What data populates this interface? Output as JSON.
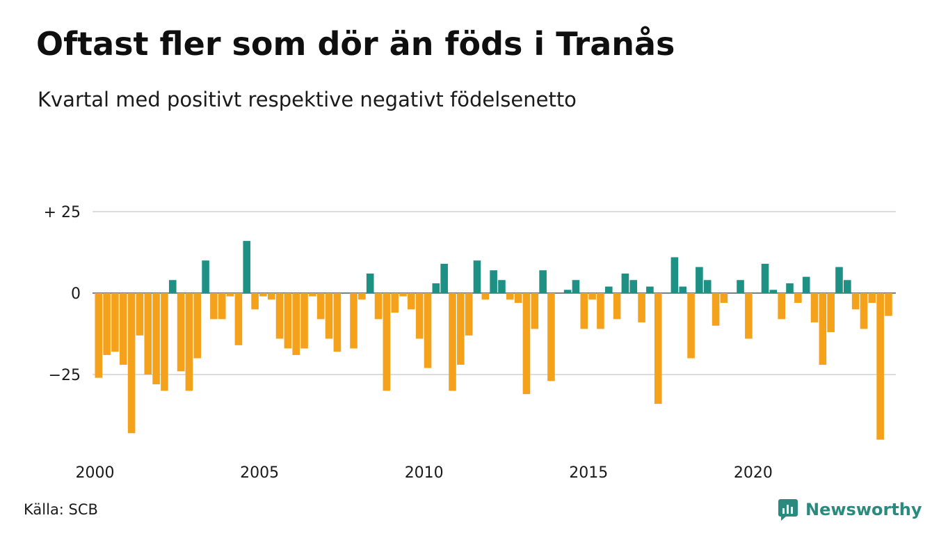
{
  "title": "Oftast fler som dör än föds i Tranås",
  "subtitle": "Kvartal med positivt respektive negativt födelsenetto",
  "source": "Källa: SCB",
  "brand": "Newsworthy",
  "colors": {
    "positive": "#1e9084",
    "negative": "#f4a21c",
    "grid": "#dcdcdc",
    "brand": "#2a8a7e"
  },
  "chart_data": {
    "type": "bar",
    "title": "",
    "xlabel": "",
    "ylabel": "",
    "ylim": [
      -46,
      25
    ],
    "grid": true,
    "legend": "none",
    "y_ticks": [
      {
        "value": 25,
        "label": "+ 25"
      },
      {
        "value": 0,
        "label": "0"
      },
      {
        "value": -25,
        "label": "−25"
      }
    ],
    "x_ticks": [
      "2000",
      "2005",
      "2010",
      "2015",
      "2020"
    ],
    "start_year": 2000,
    "values": [
      -26,
      -19,
      -18,
      -22,
      -43,
      -13,
      -25,
      -28,
      -30,
      4,
      -24,
      -30,
      -20,
      10,
      -8,
      -8,
      -1,
      -16,
      16,
      -5,
      -1,
      -2,
      -14,
      -17,
      -19,
      -17,
      -1,
      -8,
      -14,
      -18,
      0,
      -17,
      -2,
      6,
      -8,
      -30,
      -6,
      -1,
      -5,
      -14,
      -23,
      3,
      9,
      -30,
      -22,
      -13,
      10,
      -2,
      7,
      4,
      -2,
      -3,
      -31,
      -11,
      7,
      -27,
      0,
      1,
      4,
      -11,
      -2,
      -11,
      2,
      -8,
      6,
      4,
      -9,
      2,
      -34,
      0,
      11,
      2,
      -20,
      8,
      4,
      -10,
      -3,
      0,
      4,
      -14,
      0,
      9,
      1,
      -8,
      3,
      -3,
      5,
      -9,
      -22,
      -12,
      8,
      4,
      -5,
      -11,
      -3,
      -45,
      -7
    ]
  }
}
